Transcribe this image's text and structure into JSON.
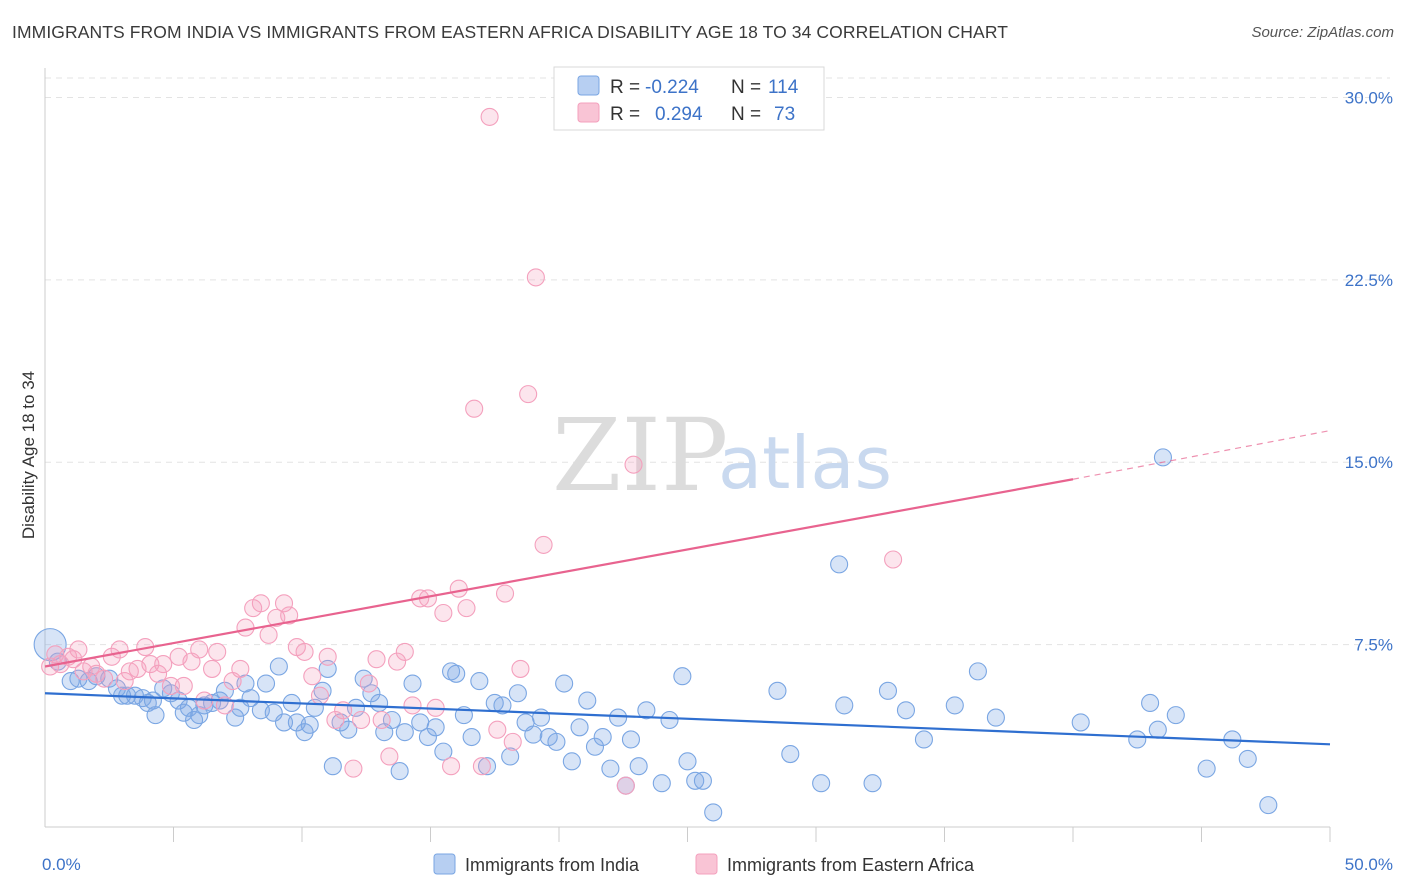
{
  "header": {
    "title": "IMMIGRANTS FROM INDIA VS IMMIGRANTS FROM EASTERN AFRICA DISABILITY AGE 18 TO 34 CORRELATION CHART",
    "source": "Source: ZipAtlas.com"
  },
  "watermark": {
    "zip": "ZIP",
    "atlas": "atlas"
  },
  "legend": {
    "r_label": "R =",
    "n_label": "N =",
    "rows": [
      {
        "r": "-0.224",
        "n": "114"
      },
      {
        "r": "0.294",
        "n": "73"
      }
    ]
  },
  "chart_data": {
    "type": "scatter",
    "title": "IMMIGRANTS FROM INDIA VS IMMIGRANTS FROM EASTERN AFRICA DISABILITY AGE 18 TO 34 CORRELATION CHART",
    "ylabel": "Disability Age 18 to 34",
    "xlabel": "",
    "x_tick_labels": [
      "0.0%",
      "50.0%"
    ],
    "y_tick_labels": [
      "7.5%",
      "15.0%",
      "22.5%",
      "30.0%"
    ],
    "y_ticks": [
      7.5,
      15.0,
      22.5,
      30.0
    ],
    "xlim": [
      0,
      50
    ],
    "ylim": [
      0,
      30.8
    ],
    "grid": true,
    "legend_position": "top-center",
    "colors": {
      "india": "#7aa6e3",
      "eastern_africa": "#f4a0bd",
      "india_line": "#2f6fd0",
      "eastern_africa_line": "#e8638f"
    },
    "series": [
      {
        "name": "Immigrants from India",
        "color": "#7aa6e3",
        "r": -0.224,
        "n": 114,
        "trend": {
          "x": [
            0,
            50
          ],
          "y": [
            5.5,
            3.4
          ]
        },
        "points": [
          [
            0.2,
            7.5
          ],
          [
            0.5,
            6.8
          ],
          [
            1.0,
            6.0
          ],
          [
            1.3,
            6.1
          ],
          [
            1.7,
            6.0
          ],
          [
            2.0,
            6.2
          ],
          [
            2.5,
            6.1
          ],
          [
            2.8,
            5.7
          ],
          [
            3.0,
            5.4
          ],
          [
            3.2,
            5.4
          ],
          [
            3.5,
            5.4
          ],
          [
            3.8,
            5.3
          ],
          [
            4.0,
            5.1
          ],
          [
            4.2,
            5.2
          ],
          [
            4.3,
            4.6
          ],
          [
            4.6,
            5.7
          ],
          [
            4.9,
            5.5
          ],
          [
            5.2,
            5.2
          ],
          [
            5.4,
            4.7
          ],
          [
            5.6,
            4.9
          ],
          [
            5.8,
            4.4
          ],
          [
            6.0,
            4.6
          ],
          [
            6.2,
            5.0
          ],
          [
            6.5,
            5.1
          ],
          [
            6.8,
            5.2
          ],
          [
            7.0,
            5.6
          ],
          [
            7.4,
            4.5
          ],
          [
            7.6,
            4.9
          ],
          [
            7.8,
            5.9
          ],
          [
            8.0,
            5.3
          ],
          [
            8.4,
            4.8
          ],
          [
            8.6,
            5.9
          ],
          [
            8.9,
            4.7
          ],
          [
            9.1,
            6.6
          ],
          [
            9.3,
            4.3
          ],
          [
            9.6,
            5.1
          ],
          [
            9.8,
            4.3
          ],
          [
            10.1,
            3.9
          ],
          [
            10.3,
            4.2
          ],
          [
            10.5,
            4.9
          ],
          [
            10.8,
            5.6
          ],
          [
            11.0,
            6.5
          ],
          [
            11.2,
            2.5
          ],
          [
            11.5,
            4.3
          ],
          [
            11.8,
            4.0
          ],
          [
            12.1,
            4.9
          ],
          [
            12.4,
            6.1
          ],
          [
            12.7,
            5.5
          ],
          [
            13.0,
            5.1
          ],
          [
            13.2,
            3.9
          ],
          [
            13.5,
            4.4
          ],
          [
            13.8,
            2.3
          ],
          [
            14.0,
            3.9
          ],
          [
            14.3,
            5.9
          ],
          [
            14.6,
            4.3
          ],
          [
            14.9,
            3.7
          ],
          [
            15.2,
            4.1
          ],
          [
            15.5,
            3.1
          ],
          [
            15.8,
            6.4
          ],
          [
            16.0,
            6.3
          ],
          [
            16.3,
            4.6
          ],
          [
            16.6,
            3.7
          ],
          [
            16.9,
            6.0
          ],
          [
            17.2,
            2.5
          ],
          [
            17.5,
            5.1
          ],
          [
            17.8,
            5.0
          ],
          [
            18.1,
            2.9
          ],
          [
            18.4,
            5.5
          ],
          [
            18.7,
            4.3
          ],
          [
            19.0,
            3.8
          ],
          [
            19.3,
            4.5
          ],
          [
            19.6,
            3.7
          ],
          [
            19.9,
            3.5
          ],
          [
            20.2,
            5.9
          ],
          [
            20.5,
            2.7
          ],
          [
            20.8,
            4.1
          ],
          [
            21.1,
            5.2
          ],
          [
            21.4,
            3.3
          ],
          [
            21.7,
            3.7
          ],
          [
            22.0,
            2.4
          ],
          [
            22.3,
            4.5
          ],
          [
            22.6,
            1.7
          ],
          [
            22.8,
            3.6
          ],
          [
            23.1,
            2.5
          ],
          [
            23.4,
            4.8
          ],
          [
            24.0,
            1.8
          ],
          [
            24.3,
            4.4
          ],
          [
            24.8,
            6.2
          ],
          [
            25.0,
            2.7
          ],
          [
            25.3,
            1.9
          ],
          [
            25.6,
            1.9
          ],
          [
            26.0,
            0.6
          ],
          [
            28.5,
            5.6
          ],
          [
            29.0,
            3.0
          ],
          [
            30.2,
            1.8
          ],
          [
            30.9,
            10.8
          ],
          [
            31.1,
            5.0
          ],
          [
            32.2,
            1.8
          ],
          [
            32.8,
            5.6
          ],
          [
            33.5,
            4.8
          ],
          [
            34.2,
            3.6
          ],
          [
            35.4,
            5.0
          ],
          [
            36.3,
            6.4
          ],
          [
            37.0,
            4.5
          ],
          [
            40.3,
            4.3
          ],
          [
            42.5,
            3.6
          ],
          [
            43.0,
            5.1
          ],
          [
            43.3,
            4.0
          ],
          [
            44.0,
            4.6
          ],
          [
            45.2,
            2.4
          ],
          [
            46.2,
            3.6
          ],
          [
            46.8,
            2.8
          ],
          [
            47.6,
            0.9
          ],
          [
            43.5,
            15.2
          ]
        ]
      },
      {
        "name": "Immigrants from Eastern Africa",
        "color": "#f4a0bd",
        "r": 0.294,
        "n": 73,
        "trend": {
          "x": [
            0,
            40
          ],
          "y": [
            6.6,
            14.3
          ]
        },
        "trend_extension": {
          "x": [
            40,
            50
          ],
          "y": [
            14.3,
            16.3
          ]
        },
        "points": [
          [
            0.2,
            6.6
          ],
          [
            0.4,
            7.1
          ],
          [
            0.6,
            6.7
          ],
          [
            0.9,
            7.0
          ],
          [
            1.1,
            6.9
          ],
          [
            1.3,
            7.3
          ],
          [
            1.5,
            6.4
          ],
          [
            1.8,
            6.6
          ],
          [
            2.0,
            6.3
          ],
          [
            2.3,
            6.1
          ],
          [
            2.6,
            7.0
          ],
          [
            2.9,
            7.3
          ],
          [
            3.1,
            6.0
          ],
          [
            3.3,
            6.4
          ],
          [
            3.6,
            6.5
          ],
          [
            3.9,
            7.4
          ],
          [
            4.1,
            6.7
          ],
          [
            4.4,
            6.3
          ],
          [
            4.6,
            6.7
          ],
          [
            4.9,
            5.8
          ],
          [
            5.2,
            7.0
          ],
          [
            5.4,
            5.8
          ],
          [
            5.7,
            6.8
          ],
          [
            6.0,
            7.3
          ],
          [
            6.2,
            5.2
          ],
          [
            6.5,
            6.5
          ],
          [
            6.7,
            7.2
          ],
          [
            7.0,
            5.0
          ],
          [
            7.3,
            6.0
          ],
          [
            7.6,
            6.5
          ],
          [
            7.8,
            8.2
          ],
          [
            8.1,
            9.0
          ],
          [
            8.4,
            9.2
          ],
          [
            8.7,
            7.9
          ],
          [
            9.0,
            8.6
          ],
          [
            9.3,
            9.2
          ],
          [
            9.5,
            8.7
          ],
          [
            9.8,
            7.4
          ],
          [
            10.1,
            7.2
          ],
          [
            10.4,
            6.2
          ],
          [
            10.7,
            5.4
          ],
          [
            11.0,
            7.0
          ],
          [
            11.3,
            4.4
          ],
          [
            11.6,
            4.8
          ],
          [
            12.0,
            2.4
          ],
          [
            12.3,
            4.4
          ],
          [
            12.6,
            5.9
          ],
          [
            12.9,
            6.9
          ],
          [
            13.1,
            4.4
          ],
          [
            13.4,
            2.9
          ],
          [
            13.7,
            6.8
          ],
          [
            14.0,
            7.2
          ],
          [
            14.3,
            5.0
          ],
          [
            14.6,
            9.4
          ],
          [
            14.9,
            9.4
          ],
          [
            15.2,
            4.9
          ],
          [
            15.5,
            8.8
          ],
          [
            15.8,
            2.5
          ],
          [
            16.1,
            9.8
          ],
          [
            16.4,
            9.0
          ],
          [
            16.7,
            17.2
          ],
          [
            17.0,
            2.5
          ],
          [
            17.3,
            29.2
          ],
          [
            17.6,
            4.0
          ],
          [
            17.9,
            9.6
          ],
          [
            18.2,
            3.5
          ],
          [
            18.5,
            6.5
          ],
          [
            18.8,
            17.8
          ],
          [
            19.1,
            22.6
          ],
          [
            19.4,
            11.6
          ],
          [
            22.6,
            1.7
          ],
          [
            22.9,
            14.9
          ],
          [
            33.0,
            11.0
          ]
        ]
      }
    ]
  },
  "bottom_legend": [
    {
      "label": "Immigrants from India"
    },
    {
      "label": "Immigrants from Eastern Africa"
    }
  ]
}
